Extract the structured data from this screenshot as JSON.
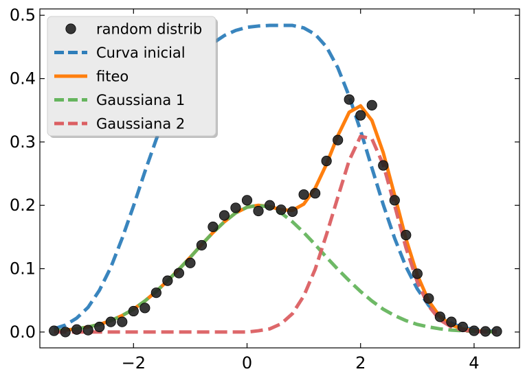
{
  "chart_data": {
    "type": "line",
    "title": "",
    "xlabel": "",
    "ylabel": "",
    "xlim": [
      -3.65,
      4.8
    ],
    "ylim": [
      -0.025,
      0.51
    ],
    "xticks": [
      -2,
      0,
      2,
      4
    ],
    "xtick_labels": [
      "−2",
      "0",
      "2",
      "4"
    ],
    "yticks": [
      0.0,
      0.1,
      0.2,
      0.3,
      0.4,
      0.5
    ],
    "ytick_labels": [
      "0.0",
      "0.1",
      "0.2",
      "0.3",
      "0.4",
      "0.5"
    ],
    "grid": false,
    "legend_position": "top-left",
    "legend_title": "",
    "series": [
      {
        "name": "random distrib",
        "kind": "scatter",
        "color": "#222222",
        "x": [
          -3.4,
          -3.2,
          -3.0,
          -2.8,
          -2.6,
          -2.4,
          -2.2,
          -2.0,
          -1.8,
          -1.6,
          -1.4,
          -1.2,
          -1.0,
          -0.8,
          -0.6,
          -0.4,
          -0.2,
          0.0,
          0.2,
          0.4,
          0.6,
          0.8,
          1.0,
          1.2,
          1.4,
          1.6,
          1.8,
          2.0,
          2.2,
          2.4,
          2.6,
          2.8,
          3.0,
          3.2,
          3.4,
          3.6,
          3.8,
          4.0,
          4.2,
          4.4
        ],
        "y": [
          0.002,
          0.0,
          0.004,
          0.003,
          0.008,
          0.016,
          0.016,
          0.033,
          0.038,
          0.062,
          0.081,
          0.093,
          0.109,
          0.137,
          0.166,
          0.184,
          0.196,
          0.208,
          0.191,
          0.2,
          0.193,
          0.19,
          0.217,
          0.219,
          0.27,
          0.303,
          0.367,
          0.342,
          0.358,
          0.263,
          0.208,
          0.153,
          0.092,
          0.053,
          0.024,
          0.016,
          0.008,
          0.002,
          0.001,
          0.001
        ]
      },
      {
        "name": "Curva inicial",
        "kind": "line",
        "dash": "dashed",
        "color": "#2E7EBA",
        "x": [
          -3.4,
          -3.2,
          -3.0,
          -2.8,
          -2.6,
          -2.4,
          -2.2,
          -2.0,
          -1.8,
          -1.6,
          -1.4,
          -1.2,
          -1.0,
          -0.8,
          -0.6,
          -0.4,
          -0.2,
          0.0,
          0.2,
          0.4,
          0.6,
          0.8,
          1.0,
          1.2,
          1.4,
          1.6,
          1.8,
          2.0,
          2.2,
          2.4,
          2.6,
          2.8,
          3.0,
          3.2,
          3.4,
          3.6,
          3.8,
          4.0,
          4.2,
          4.4
        ],
        "y": [
          0.005,
          0.011,
          0.022,
          0.039,
          0.066,
          0.102,
          0.148,
          0.199,
          0.253,
          0.304,
          0.35,
          0.388,
          0.418,
          0.44,
          0.456,
          0.468,
          0.476,
          0.481,
          0.483,
          0.484,
          0.484,
          0.484,
          0.48,
          0.47,
          0.45,
          0.417,
          0.372,
          0.318,
          0.259,
          0.201,
          0.148,
          0.103,
          0.068,
          0.042,
          0.025,
          0.014,
          0.007,
          0.004,
          0.002,
          0.001
        ]
      },
      {
        "name": "fiteo",
        "kind": "line",
        "dash": "solid",
        "color": "#FF7F0E",
        "x": [
          -3.4,
          -3.2,
          -3.0,
          -2.8,
          -2.6,
          -2.4,
          -2.2,
          -2.0,
          -1.8,
          -1.6,
          -1.4,
          -1.2,
          -1.0,
          -0.8,
          -0.6,
          -0.4,
          -0.2,
          0.0,
          0.2,
          0.4,
          0.6,
          0.8,
          1.0,
          1.2,
          1.4,
          1.6,
          1.8,
          2.0,
          2.2,
          2.4,
          2.6,
          2.8,
          3.0,
          3.2,
          3.4,
          3.6,
          3.8,
          4.0,
          4.2,
          4.4
        ],
        "y": [
          0.002,
          0.003,
          0.005,
          0.008,
          0.012,
          0.018,
          0.026,
          0.036,
          0.049,
          0.064,
          0.081,
          0.099,
          0.118,
          0.138,
          0.157,
          0.174,
          0.188,
          0.197,
          0.2,
          0.198,
          0.193,
          0.192,
          0.202,
          0.227,
          0.265,
          0.31,
          0.347,
          0.357,
          0.334,
          0.283,
          0.216,
          0.147,
          0.09,
          0.049,
          0.024,
          0.011,
          0.005,
          0.002,
          0.001,
          0.0
        ]
      },
      {
        "name": "Gaussiana 1",
        "kind": "line",
        "dash": "dashed",
        "color": "#66B55E",
        "x": [
          -3.4,
          -3.2,
          -3.0,
          -2.8,
          -2.6,
          -2.4,
          -2.2,
          -2.0,
          -1.8,
          -1.6,
          -1.4,
          -1.2,
          -1.0,
          -0.8,
          -0.6,
          -0.4,
          -0.2,
          0.0,
          0.2,
          0.4,
          0.6,
          0.8,
          1.0,
          1.2,
          1.4,
          1.6,
          1.8,
          2.0,
          2.2,
          2.4,
          2.6,
          2.8,
          3.0,
          3.2,
          3.4,
          3.6,
          3.8,
          4.0,
          4.2,
          4.4
        ],
        "y": [
          0.002,
          0.003,
          0.005,
          0.008,
          0.012,
          0.018,
          0.026,
          0.036,
          0.049,
          0.064,
          0.081,
          0.099,
          0.118,
          0.138,
          0.157,
          0.174,
          0.188,
          0.197,
          0.2,
          0.197,
          0.188,
          0.174,
          0.157,
          0.138,
          0.118,
          0.099,
          0.081,
          0.064,
          0.049,
          0.036,
          0.026,
          0.018,
          0.012,
          0.008,
          0.005,
          0.003,
          0.002,
          0.001,
          0.001,
          0.0
        ]
      },
      {
        "name": "Gaussiana 2",
        "kind": "line",
        "dash": "dashed",
        "color": "#DB5F62",
        "x": [
          -3.4,
          -3.2,
          -3.0,
          -2.8,
          -2.6,
          -2.4,
          -2.2,
          -2.0,
          -1.8,
          -1.6,
          -1.4,
          -1.2,
          -1.0,
          -0.8,
          -0.6,
          -0.4,
          -0.2,
          0.0,
          0.2,
          0.4,
          0.6,
          0.8,
          1.0,
          1.2,
          1.4,
          1.6,
          1.8,
          2.0,
          2.2,
          2.4,
          2.6,
          2.8,
          3.0,
          3.2,
          3.4,
          3.6,
          3.8,
          4.0,
          4.2,
          4.4
        ],
        "y": [
          0.0,
          0.0,
          0.0,
          0.0,
          0.0,
          0.0,
          0.0,
          0.0,
          0.0,
          0.0,
          0.0,
          0.0,
          0.0,
          0.0,
          0.0,
          0.0,
          0.0,
          0.0,
          0.002,
          0.005,
          0.013,
          0.029,
          0.057,
          0.099,
          0.154,
          0.213,
          0.271,
          0.309,
          0.305,
          0.264,
          0.2,
          0.133,
          0.079,
          0.041,
          0.019,
          0.008,
          0.003,
          0.001,
          0.0,
          0.0
        ]
      }
    ]
  }
}
